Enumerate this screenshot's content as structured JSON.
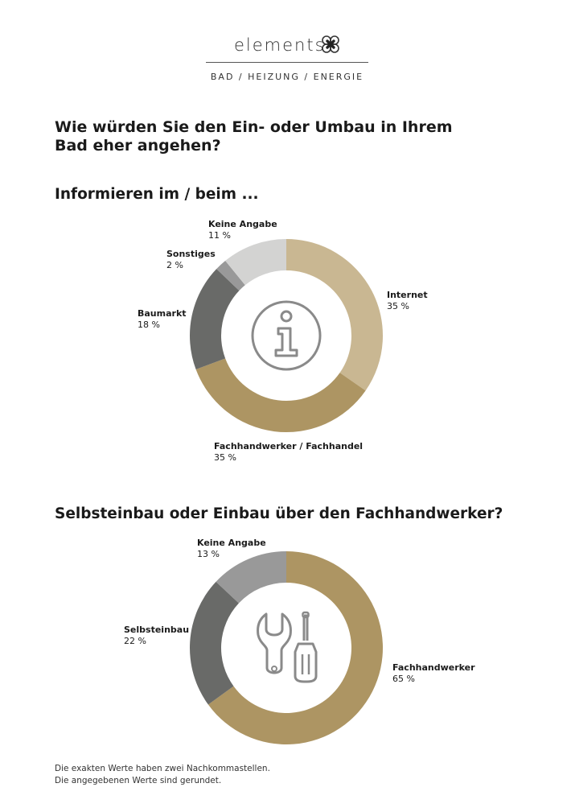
{
  "header": {
    "brand": "elements",
    "tagline": "BAD / HEIZUNG / ENERGIE"
  },
  "title": "Wie würden Sie den Ein- oder Umbau in Ihrem Bad eher angehen?",
  "chart_data": [
    {
      "type": "pie",
      "title": "Informieren im / beim ...",
      "center_icon": "info-icon",
      "slices": [
        {
          "label": "Internet",
          "value": 35,
          "display": "35 %",
          "color": "#c9b792"
        },
        {
          "label": "Fachhandwerker / Fachhandel",
          "value": 35,
          "display": "35 %",
          "color": "#ad9563"
        },
        {
          "label": "Baumarkt",
          "value": 18,
          "display": "18 %",
          "color": "#696a68"
        },
        {
          "label": "Sonstiges",
          "value": 2,
          "display": "2 %",
          "color": "#999999"
        },
        {
          "label": "Keine Angabe",
          "value": 11,
          "display": "11 %",
          "color": "#d3d3d2"
        }
      ]
    },
    {
      "type": "pie",
      "title": "Selbsteinbau oder Einbau über den Fachhandwerker?",
      "center_icon": "tools-icon",
      "slices": [
        {
          "label": "Fachhandwerker",
          "value": 65,
          "display": "65 %",
          "color": "#ad9563"
        },
        {
          "label": "Selbsteinbau",
          "value": 22,
          "display": "22 %",
          "color": "#696a68"
        },
        {
          "label": "Keine Angabe",
          "value": 13,
          "display": "13 %",
          "color": "#999999"
        }
      ]
    }
  ],
  "footnote": {
    "line1": "Die exakten Werte haben zwei Nachkommastellen.",
    "line2": "Die angegebenen Werte sind gerundet."
  }
}
